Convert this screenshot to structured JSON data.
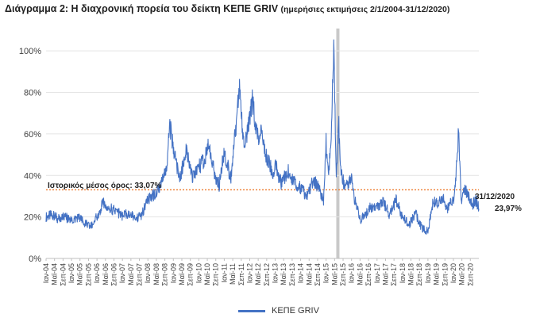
{
  "header": {
    "title": "Διάγραμμα 2: Η διαχρονική πορεία του δείκτη ΚΕΠΕ GRIV",
    "subtitle": "(ημερήσιες εκτιμήσεις 2/1/2004-31/12/2020)"
  },
  "chart_data": {
    "type": "line",
    "title": "Διάγραμμα 2: Η διαχρονική πορεία του δείκτη ΚΕΠΕ GRIV (ημερήσιες εκτιμήσεις 2/1/2004-31/12/2020)",
    "xlabel": "",
    "ylabel": "",
    "ylim": [
      0,
      1.1
    ],
    "yticks": [
      0,
      0.2,
      0.4,
      0.6,
      0.8,
      1.0
    ],
    "ytick_labels": [
      "0%",
      "20%",
      "40%",
      "60%",
      "80%",
      "100%"
    ],
    "x_range": [
      2004.0,
      2021.0
    ],
    "x_tick_labels": [
      "Ιαν-04",
      "Μαϊ-04",
      "Σεπ-04",
      "Ιαν-05",
      "Μαϊ-05",
      "Σεπ-05",
      "Ιαν-06",
      "Μαϊ-06",
      "Σεπ-06",
      "Ιαν-07",
      "Μαϊ-07",
      "Σεπ-07",
      "Ιαν-08",
      "Μαϊ-08",
      "Σεπ-08",
      "Ιαν-09",
      "Μαϊ-09",
      "Σεπ-09",
      "Ιαν-10",
      "Μαϊ-10",
      "Σεπ-10",
      "Ιαν-11",
      "Μαϊ-11",
      "Σεπ-11",
      "Ιαν-12",
      "Μαϊ-12",
      "Σεπ-12",
      "Ιαν-13",
      "Μαϊ-13",
      "Σεπ-13",
      "Ιαν-14",
      "Μαϊ-14",
      "Σεπ-14",
      "Ιαν-15",
      "Μαϊ-15",
      "Σεπ-15",
      "Ιαν-16",
      "Μαϊ-16",
      "Σεπ-16",
      "Ιαν-17",
      "Μαϊ-17",
      "Σεπ-17",
      "Ιαν-18",
      "Μαϊ-18",
      "Σεπ-18",
      "Ιαν-19",
      "Μαϊ-19",
      "Σεπ-19",
      "Ιαν-20",
      "Μαϊ-20",
      "Σεπ-20"
    ],
    "series": [
      {
        "name": "ΚΕΠΕ GRIV",
        "color": "#4472c4",
        "x": [
          2004.0,
          2004.25,
          2004.5,
          2004.75,
          2005.0,
          2005.25,
          2005.5,
          2005.75,
          2006.0,
          2006.25,
          2006.5,
          2006.75,
          2007.0,
          2007.25,
          2007.5,
          2007.75,
          2008.0,
          2008.25,
          2008.5,
          2008.75,
          2008.85,
          2009.0,
          2009.25,
          2009.5,
          2009.75,
          2010.0,
          2010.2,
          2010.4,
          2010.6,
          2010.8,
          2011.0,
          2011.25,
          2011.45,
          2011.6,
          2011.75,
          2011.9,
          2012.1,
          2012.3,
          2012.45,
          2012.6,
          2012.75,
          2012.9,
          2013.0,
          2013.25,
          2013.5,
          2013.75,
          2014.0,
          2014.25,
          2014.5,
          2014.75,
          2014.9,
          2015.0,
          2015.1,
          2015.2,
          2015.3,
          2015.4,
          2015.5,
          2015.55,
          2015.6,
          2015.75,
          2016.0,
          2016.1,
          2016.25,
          2016.35,
          2016.5,
          2016.75,
          2017.0,
          2017.25,
          2017.5,
          2017.75,
          2018.0,
          2018.25,
          2018.5,
          2018.75,
          2019.0,
          2019.2,
          2019.4,
          2019.6,
          2019.75,
          2020.0,
          2020.1,
          2020.2,
          2020.3,
          2020.45,
          2020.6,
          2020.75,
          2020.9,
          2021.0
        ],
        "values": [
          0.2,
          0.21,
          0.19,
          0.2,
          0.18,
          0.2,
          0.17,
          0.15,
          0.2,
          0.27,
          0.24,
          0.23,
          0.2,
          0.22,
          0.19,
          0.21,
          0.28,
          0.31,
          0.36,
          0.45,
          0.65,
          0.53,
          0.38,
          0.52,
          0.39,
          0.44,
          0.47,
          0.55,
          0.42,
          0.35,
          0.52,
          0.38,
          0.62,
          0.84,
          0.55,
          0.6,
          0.77,
          0.58,
          0.62,
          0.51,
          0.47,
          0.41,
          0.45,
          0.36,
          0.42,
          0.37,
          0.34,
          0.3,
          0.38,
          0.33,
          0.28,
          0.56,
          0.42,
          0.6,
          1.03,
          0.38,
          0.65,
          0.45,
          0.4,
          0.34,
          0.38,
          0.3,
          0.23,
          0.19,
          0.2,
          0.25,
          0.24,
          0.27,
          0.21,
          0.28,
          0.2,
          0.16,
          0.22,
          0.15,
          0.13,
          0.28,
          0.26,
          0.3,
          0.24,
          0.28,
          0.38,
          0.61,
          0.28,
          0.33,
          0.3,
          0.26,
          0.28,
          0.24
        ]
      }
    ],
    "mean_line": {
      "value": 0.3307,
      "label": "Ιστορικός μέσος όρος: 33,07%",
      "color": "#ed7d31"
    },
    "highlight_band": {
      "x_start": 2015.4,
      "x_end": 2015.5,
      "color": "#c9c9c9"
    },
    "annotations": {
      "last_date": "31/12/2020",
      "last_value": "23,97%"
    },
    "legend": {
      "position": "bottom",
      "label": "ΚΕΠΕ GRIV"
    },
    "grid": true
  }
}
